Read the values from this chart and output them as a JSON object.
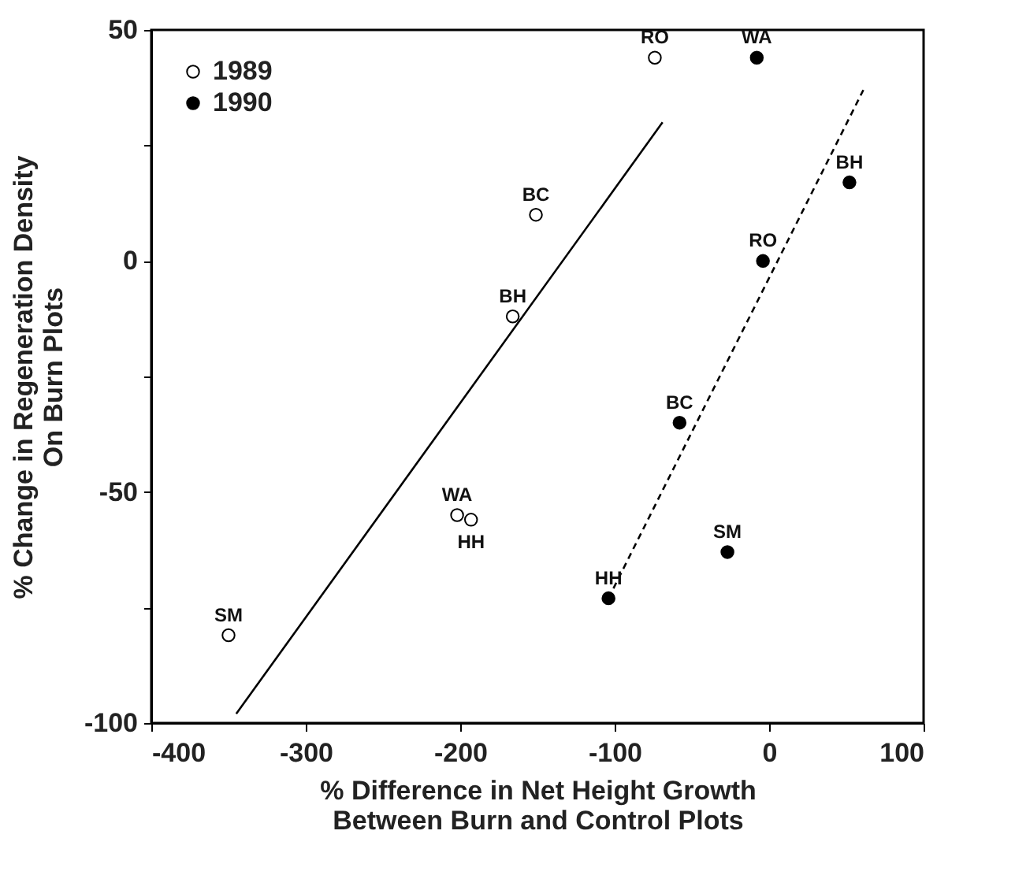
{
  "chart_data": {
    "type": "scatter",
    "xlabel": "% Difference in Net Height Growth\nBetween Burn and Control Plots",
    "ylabel": "% Change in Regeneration Density\nOn Burn Plots",
    "series": [
      {
        "name": "1989",
        "color": "#ffffff",
        "x": [
          -74,
          -151,
          -166,
          -202,
          -193,
          -350
        ],
        "values": [
          44,
          10,
          -12,
          -55,
          -56,
          -81
        ]
      },
      {
        "name": "1990",
        "color": "#000000",
        "x": [
          -8,
          52,
          -4,
          -58,
          -27,
          -104
        ],
        "values": [
          44,
          17,
          0,
          -35,
          -63,
          -73
        ]
      },
      {
        "color": "#000000",
        "type": "line",
        "marker": "none",
        "line_style": "solid",
        "x": [
          -345,
          -69
        ],
        "values": [
          -98,
          30
        ]
      },
      {
        "color": "#000000",
        "type": "line",
        "marker": "none",
        "line_style": "dashed",
        "x": [
          -104,
          61
        ],
        "values": [
          -73,
          37
        ]
      }
    ],
    "annotations": [
      {
        "text": "RO",
        "x": -74,
        "y": 44
      },
      {
        "text": "BC",
        "x": -151,
        "y": 10
      },
      {
        "text": "BH",
        "x": -166,
        "y": -12
      },
      {
        "text": "WA",
        "x": -202,
        "y": -55
      },
      {
        "text": "HH",
        "x": -193,
        "y": -56
      },
      {
        "text": "SM",
        "x": -350,
        "y": -81
      },
      {
        "text": "WA",
        "x": -8,
        "y": 44
      },
      {
        "text": "BH",
        "x": 52,
        "y": 17
      },
      {
        "text": "RO",
        "x": -4,
        "y": 0
      },
      {
        "text": "BC",
        "x": -58,
        "y": -35
      },
      {
        "text": "SM",
        "x": -27,
        "y": -63
      },
      {
        "text": "HH",
        "x": -104,
        "y": -73
      }
    ],
    "xlim": [
      -400,
      100
    ],
    "xticks": [
      -400,
      -300,
      -200,
      -100,
      0,
      100
    ],
    "ylim": [
      -100,
      50
    ],
    "yticks": [
      -100,
      {
        "value": -75,
        "label": null
      },
      -50,
      {
        "value": -25,
        "label": null
      },
      0,
      {
        "value": 25,
        "label": null
      },
      50
    ],
    "grid": false,
    "legend": "top left",
    "marker": "circle"
  }
}
